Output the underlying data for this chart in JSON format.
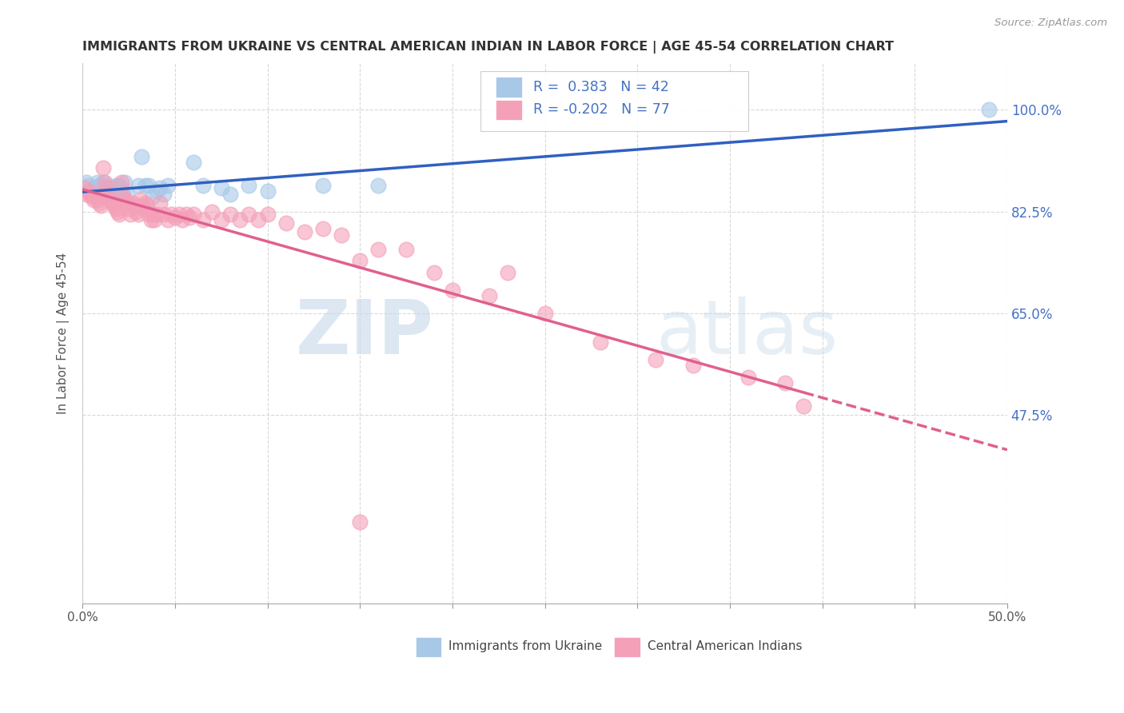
{
  "title": "IMMIGRANTS FROM UKRAINE VS CENTRAL AMERICAN INDIAN IN LABOR FORCE | AGE 45-54 CORRELATION CHART",
  "source": "Source: ZipAtlas.com",
  "ylabel": "In Labor Force | Age 45-54",
  "xlim": [
    0.0,
    0.5
  ],
  "ylim": [
    0.15,
    1.08
  ],
  "xtick_positions": [
    0.0,
    0.05,
    0.1,
    0.15,
    0.2,
    0.25,
    0.3,
    0.35,
    0.4,
    0.45,
    0.5
  ],
  "xtick_labels": [
    "0.0%",
    "",
    "",
    "",
    "",
    "",
    "",
    "",
    "",
    "",
    "50.0%"
  ],
  "ytick_values_right": [
    1.0,
    0.825,
    0.65,
    0.475
  ],
  "ytick_labels_right": [
    "100.0%",
    "82.5%",
    "65.0%",
    "47.5%"
  ],
  "ukraine_R": 0.383,
  "ukraine_N": 42,
  "central_R": -0.202,
  "central_N": 77,
  "ukraine_color": "#a8c8e8",
  "central_color": "#f4a0b8",
  "ukraine_line_color": "#3060c0",
  "central_line_color": "#e06090",
  "legend_text_color": "#4472c4",
  "ukraine_x": [
    0.002,
    0.003,
    0.004,
    0.005,
    0.006,
    0.007,
    0.008,
    0.009,
    0.01,
    0.01,
    0.011,
    0.012,
    0.013,
    0.014,
    0.015,
    0.016,
    0.017,
    0.018,
    0.019,
    0.02,
    0.021,
    0.022,
    0.023,
    0.024,
    0.03,
    0.032,
    0.034,
    0.036,
    0.038,
    0.04,
    0.042,
    0.044,
    0.046,
    0.06,
    0.065,
    0.075,
    0.08,
    0.09,
    0.1,
    0.13,
    0.16,
    0.49
  ],
  "ukraine_y": [
    0.875,
    0.87,
    0.86,
    0.855,
    0.865,
    0.86,
    0.875,
    0.87,
    0.855,
    0.85,
    0.875,
    0.87,
    0.86,
    0.855,
    0.865,
    0.855,
    0.865,
    0.87,
    0.855,
    0.87,
    0.865,
    0.855,
    0.875,
    0.855,
    0.87,
    0.92,
    0.87,
    0.87,
    0.85,
    0.86,
    0.865,
    0.855,
    0.87,
    0.91,
    0.87,
    0.865,
    0.855,
    0.87,
    0.86,
    0.87,
    0.87,
    1.0
  ],
  "central_x": [
    0.001,
    0.002,
    0.003,
    0.004,
    0.005,
    0.006,
    0.007,
    0.008,
    0.009,
    0.01,
    0.011,
    0.012,
    0.013,
    0.014,
    0.015,
    0.016,
    0.017,
    0.018,
    0.019,
    0.02,
    0.021,
    0.022,
    0.023,
    0.024,
    0.025,
    0.026,
    0.027,
    0.028,
    0.029,
    0.03,
    0.031,
    0.032,
    0.033,
    0.034,
    0.035,
    0.036,
    0.037,
    0.038,
    0.039,
    0.04,
    0.042,
    0.044,
    0.046,
    0.048,
    0.05,
    0.052,
    0.054,
    0.056,
    0.058,
    0.06,
    0.065,
    0.07,
    0.075,
    0.08,
    0.085,
    0.09,
    0.095,
    0.1,
    0.11,
    0.12,
    0.13,
    0.14,
    0.15,
    0.16,
    0.175,
    0.19,
    0.2,
    0.22,
    0.23,
    0.25,
    0.28,
    0.31,
    0.33,
    0.36,
    0.38,
    0.39,
    0.15
  ],
  "central_y": [
    0.865,
    0.855,
    0.86,
    0.855,
    0.85,
    0.845,
    0.855,
    0.845,
    0.84,
    0.835,
    0.9,
    0.875,
    0.865,
    0.855,
    0.845,
    0.84,
    0.835,
    0.83,
    0.825,
    0.82,
    0.875,
    0.85,
    0.845,
    0.84,
    0.83,
    0.82,
    0.84,
    0.835,
    0.825,
    0.82,
    0.845,
    0.835,
    0.83,
    0.84,
    0.835,
    0.82,
    0.81,
    0.82,
    0.81,
    0.82,
    0.84,
    0.82,
    0.81,
    0.82,
    0.815,
    0.82,
    0.81,
    0.82,
    0.815,
    0.82,
    0.81,
    0.825,
    0.81,
    0.82,
    0.81,
    0.82,
    0.81,
    0.82,
    0.805,
    0.79,
    0.795,
    0.785,
    0.74,
    0.76,
    0.76,
    0.72,
    0.69,
    0.68,
    0.72,
    0.65,
    0.6,
    0.57,
    0.56,
    0.54,
    0.53,
    0.49,
    0.29
  ],
  "watermark_zip": "ZIP",
  "watermark_atlas": "atlas",
  "background_color": "#ffffff",
  "grid_color": "#d8d8d8",
  "border_color": "#cccccc"
}
